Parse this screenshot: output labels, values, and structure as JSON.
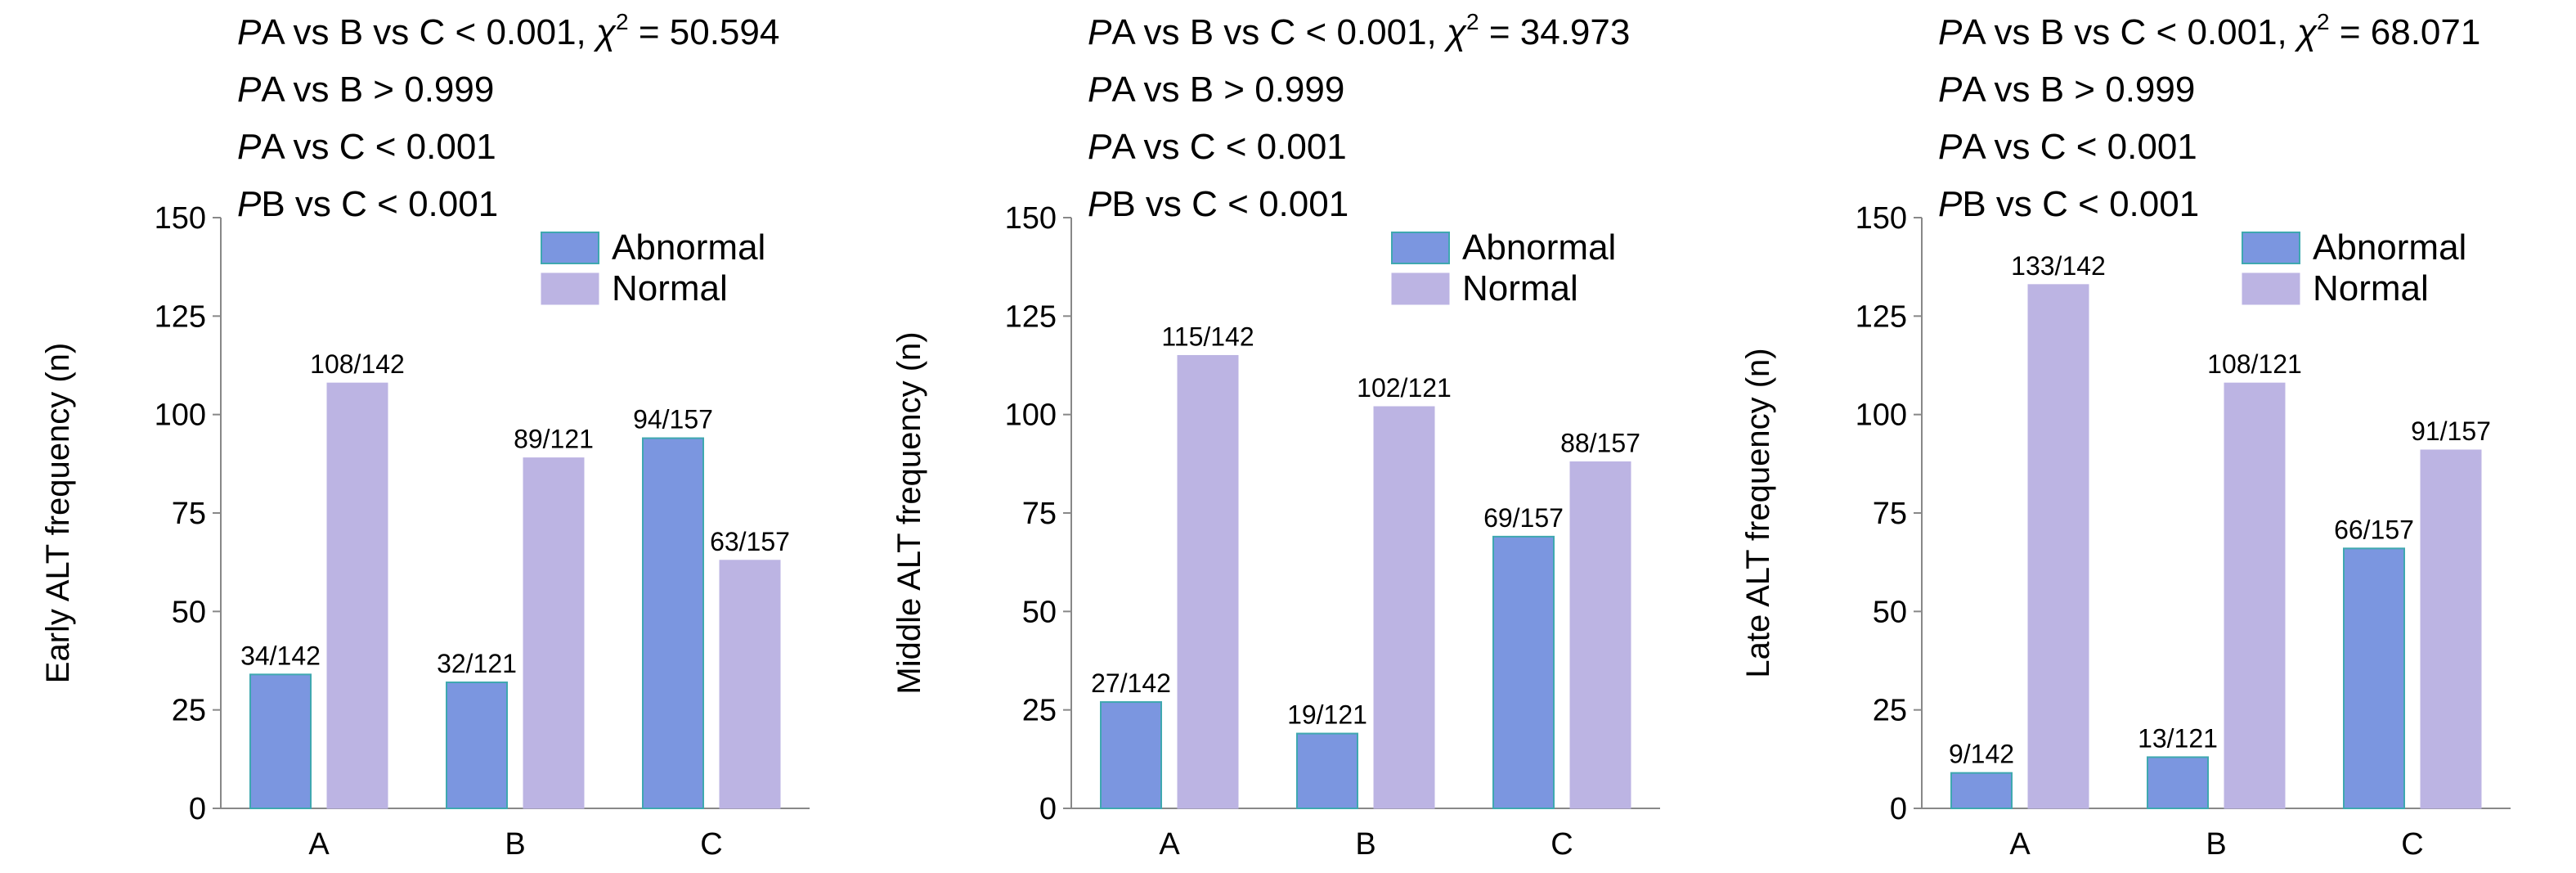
{
  "colors": {
    "abnormal": "#7b96e0",
    "abnormal_border": "#3fa8b0",
    "normal": "#bcb4e3",
    "axis": "#888888"
  },
  "chart_data": [
    {
      "type": "bar",
      "categories": [
        "A",
        "B",
        "C"
      ],
      "ylabel": "Early ALT frequency (n)",
      "ylim": [
        0,
        150
      ],
      "yticks": [
        0,
        25,
        50,
        75,
        100,
        125,
        150
      ],
      "legend": "top-right",
      "grid": false,
      "stats": [
        {
          "p": "P",
          "text": "A vs B vs C < 0.001, ",
          "chi": "χ",
          "sup": "2",
          "tail": " = 50.594"
        },
        {
          "p": "P",
          "text": "A vs B > 0.999"
        },
        {
          "p": "P",
          "text": "A vs C < 0.001"
        },
        {
          "p": "P",
          "text": "B vs C < 0.001"
        }
      ],
      "series": [
        {
          "name": "Abnormal",
          "values": [
            34,
            32,
            94
          ],
          "labels": [
            "34/142",
            "32/121",
            "94/157"
          ]
        },
        {
          "name": "Normal",
          "values": [
            108,
            89,
            63
          ],
          "labels": [
            "108/142",
            "89/121",
            "63/157"
          ]
        }
      ]
    },
    {
      "type": "bar",
      "categories": [
        "A",
        "B",
        "C"
      ],
      "ylabel": "Middle ALT frequency (n)",
      "ylim": [
        0,
        150
      ],
      "yticks": [
        0,
        25,
        50,
        75,
        100,
        125,
        150
      ],
      "legend": "top-right",
      "grid": false,
      "stats": [
        {
          "p": "P",
          "text": "A vs B vs C < 0.001, ",
          "chi": "χ",
          "sup": "2",
          "tail": " = 34.973"
        },
        {
          "p": "P",
          "text": "A vs B > 0.999"
        },
        {
          "p": "P",
          "text": "A vs C < 0.001"
        },
        {
          "p": "P",
          "text": "B vs C < 0.001"
        }
      ],
      "series": [
        {
          "name": "Abnormal",
          "values": [
            27,
            19,
            69
          ],
          "labels": [
            "27/142",
            "19/121",
            "69/157"
          ]
        },
        {
          "name": "Normal",
          "values": [
            115,
            102,
            88
          ],
          "labels": [
            "115/142",
            "102/121",
            "88/157"
          ]
        }
      ]
    },
    {
      "type": "bar",
      "categories": [
        "A",
        "B",
        "C"
      ],
      "ylabel": "Late ALT frequency (n)",
      "ylim": [
        0,
        150
      ],
      "yticks": [
        0,
        25,
        50,
        75,
        100,
        125,
        150
      ],
      "legend": "top-right",
      "grid": false,
      "stats": [
        {
          "p": "P",
          "text": "A vs B vs C < 0.001, ",
          "chi": "χ",
          "sup": "2",
          "tail": " = 68.071"
        },
        {
          "p": "P",
          "text": "A vs B > 0.999"
        },
        {
          "p": "P",
          "text": "A vs C < 0.001"
        },
        {
          "p": "P",
          "text": "B vs C < 0.001"
        }
      ],
      "series": [
        {
          "name": "Abnormal",
          "values": [
            9,
            13,
            66
          ],
          "labels": [
            "9/142",
            "13/121",
            "66/157"
          ]
        },
        {
          "name": "Normal",
          "values": [
            133,
            108,
            91
          ],
          "labels": [
            "133/142",
            "108/121",
            "91/157"
          ]
        }
      ]
    }
  ]
}
